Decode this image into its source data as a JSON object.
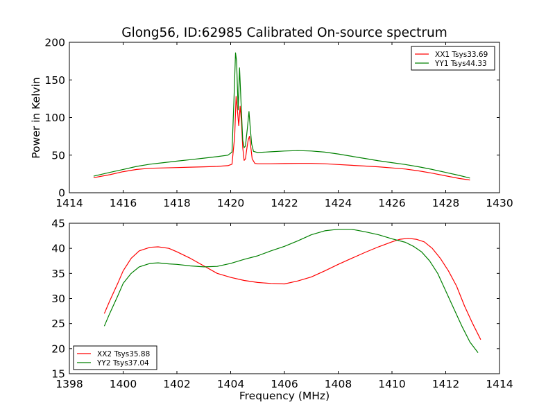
{
  "chart_data": [
    {
      "type": "line",
      "title": "Glong56, ID:62985 Calibrated On-source spectrum",
      "xlabel": "",
      "ylabel": "Power in Kelvin",
      "xlim": [
        1414,
        1430
      ],
      "ylim": [
        0,
        200
      ],
      "xticks": [
        1414,
        1416,
        1418,
        1420,
        1422,
        1424,
        1426,
        1428,
        1430
      ],
      "yticks": [
        0,
        50,
        100,
        150,
        200
      ],
      "grid": false,
      "legend": "top-right",
      "series": [
        {
          "name": "XX1 Tsys33.69",
          "color": "#ff0000",
          "x": [
            1414.9,
            1415.5,
            1416.0,
            1416.5,
            1417.0,
            1417.5,
            1418.0,
            1418.5,
            1419.0,
            1419.5,
            1419.9,
            1420.05,
            1420.15,
            1420.2,
            1420.25,
            1420.3,
            1420.35,
            1420.4,
            1420.45,
            1420.5,
            1420.55,
            1420.6,
            1420.65,
            1420.7,
            1420.75,
            1420.8,
            1420.9,
            1421.0,
            1421.5,
            1422.0,
            1422.5,
            1423.0,
            1423.5,
            1424.0,
            1424.5,
            1425.0,
            1425.5,
            1426.0,
            1426.5,
            1427.0,
            1427.5,
            1428.0,
            1428.5,
            1428.9
          ],
          "y": [
            20,
            24,
            28,
            31,
            32.5,
            33,
            33.5,
            34,
            34.5,
            35,
            36,
            38,
            75,
            128,
            110,
            89,
            115,
            95,
            60,
            43,
            45,
            58,
            70,
            75,
            60,
            45,
            39,
            38.5,
            38.5,
            38.8,
            39,
            39,
            38.5,
            37.5,
            36.5,
            35.5,
            34.5,
            33,
            31.5,
            29,
            26,
            22.5,
            19,
            17
          ]
        },
        {
          "name": "YY1 Tsys44.33",
          "color": "#008000",
          "x": [
            1414.9,
            1415.5,
            1416.0,
            1416.5,
            1417.0,
            1417.5,
            1418.0,
            1418.5,
            1419.0,
            1419.5,
            1419.9,
            1420.05,
            1420.12,
            1420.18,
            1420.22,
            1420.28,
            1420.33,
            1420.38,
            1420.45,
            1420.5,
            1420.55,
            1420.62,
            1420.68,
            1420.72,
            1420.78,
            1420.85,
            1421.0,
            1421.5,
            1422.0,
            1422.5,
            1423.0,
            1423.5,
            1424.0,
            1424.5,
            1425.0,
            1425.5,
            1426.0,
            1426.5,
            1427.0,
            1427.5,
            1428.0,
            1428.5,
            1428.9
          ],
          "y": [
            22,
            27,
            31,
            35,
            38,
            40,
            42,
            44,
            46,
            48,
            50,
            54,
            120,
            186,
            175,
            110,
            166,
            125,
            70,
            60,
            62,
            85,
            108,
            90,
            65,
            55,
            53.5,
            54.5,
            55.5,
            56,
            55.5,
            54,
            51.5,
            48.5,
            45.5,
            42.5,
            40,
            37.5,
            34.5,
            31,
            27,
            23,
            19.5
          ]
        }
      ]
    },
    {
      "type": "line",
      "title": "",
      "xlabel": "Frequency (MHz)",
      "ylabel": "",
      "xlim": [
        1398,
        1414
      ],
      "ylim": [
        15,
        45
      ],
      "xticks": [
        1398,
        1400,
        1402,
        1404,
        1406,
        1408,
        1410,
        1412,
        1414
      ],
      "yticks": [
        15,
        20,
        25,
        30,
        35,
        40,
        45
      ],
      "grid": false,
      "legend": "bottom-left",
      "series": [
        {
          "name": "XX2 Tsys35.88",
          "color": "#ff0000",
          "x": [
            1399.3,
            1399.5,
            1399.8,
            1400.0,
            1400.3,
            1400.6,
            1401.0,
            1401.3,
            1401.7,
            1402.0,
            1402.5,
            1403.0,
            1403.5,
            1404.0,
            1404.5,
            1405.0,
            1405.5,
            1406.0,
            1406.5,
            1407.0,
            1407.5,
            1408.0,
            1408.5,
            1409.0,
            1409.5,
            1410.0,
            1410.3,
            1410.6,
            1410.9,
            1411.2,
            1411.5,
            1411.8,
            1412.1,
            1412.4,
            1412.7,
            1413.0,
            1413.3
          ],
          "y": [
            27,
            29.5,
            33,
            35.5,
            38,
            39.5,
            40.2,
            40.3,
            40,
            39.3,
            38,
            36.5,
            35,
            34.2,
            33.6,
            33.2,
            33,
            32.9,
            33.5,
            34.3,
            35.5,
            36.8,
            38,
            39.2,
            40.3,
            41.3,
            41.8,
            42,
            41.8,
            41.3,
            40,
            38,
            35.5,
            32.5,
            28.5,
            25,
            21.8
          ]
        },
        {
          "name": "YY2 Tsys37.04",
          "color": "#008000",
          "x": [
            1399.3,
            1399.5,
            1399.8,
            1400.0,
            1400.3,
            1400.6,
            1401.0,
            1401.3,
            1401.7,
            1402.0,
            1402.5,
            1403.0,
            1403.5,
            1404.0,
            1404.5,
            1405.0,
            1405.5,
            1406.0,
            1406.5,
            1407.0,
            1407.5,
            1408.0,
            1408.5,
            1409.0,
            1409.5,
            1410.0,
            1410.5,
            1410.8,
            1411.1,
            1411.4,
            1411.7,
            1412.0,
            1412.3,
            1412.6,
            1412.9,
            1413.2
          ],
          "y": [
            24.5,
            27,
            30.5,
            33,
            35,
            36.3,
            37,
            37.1,
            36.9,
            36.8,
            36.5,
            36.3,
            36.4,
            37,
            37.8,
            38.5,
            39.5,
            40.4,
            41.5,
            42.7,
            43.5,
            43.8,
            43.8,
            43.3,
            42.7,
            41.9,
            41.2,
            40.4,
            39.3,
            37.5,
            35,
            31.5,
            28,
            24.5,
            21.3,
            19.2
          ]
        }
      ]
    }
  ]
}
